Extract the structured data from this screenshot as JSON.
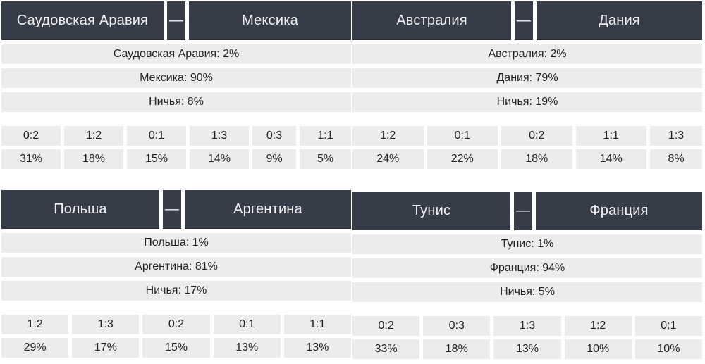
{
  "matches": [
    {
      "team1": "Саудовская Аравия",
      "dash": "—",
      "team2": "Мексика",
      "prob": [
        "Саудовская Аравия: 2%",
        "Мексика: 90%",
        "Ничья: 8%"
      ],
      "scores": [
        {
          "score": "0:2",
          "pct": "31%"
        },
        {
          "score": "1:2",
          "pct": "18%"
        },
        {
          "score": "0:1",
          "pct": "15%"
        },
        {
          "score": "1:3",
          "pct": "14%"
        },
        {
          "score": "0:3",
          "pct": "9%"
        },
        {
          "score": "1:1",
          "pct": "5%"
        }
      ]
    },
    {
      "team1": "Австралия",
      "dash": "—",
      "team2": "Дания",
      "prob": [
        "Австралия: 2%",
        "Дания: 79%",
        "Ничья: 19%"
      ],
      "scores": [
        {
          "score": "1:2",
          "pct": "24%"
        },
        {
          "score": "0:1",
          "pct": "22%"
        },
        {
          "score": "0:2",
          "pct": "18%"
        },
        {
          "score": "1:1",
          "pct": "14%"
        },
        {
          "score": "1:3",
          "pct": "8%"
        }
      ]
    },
    {
      "team1": "Польша",
      "dash": "—",
      "team2": "Аргентина",
      "prob": [
        "Польша: 1%",
        "Аргентина: 81%",
        "Ничья: 17%"
      ],
      "scores": [
        {
          "score": "1:2",
          "pct": "29%"
        },
        {
          "score": "1:3",
          "pct": "17%"
        },
        {
          "score": "0:2",
          "pct": "15%"
        },
        {
          "score": "0:1",
          "pct": "13%"
        },
        {
          "score": "1:1",
          "pct": "13%"
        }
      ]
    },
    {
      "team1": "Тунис",
      "dash": "—",
      "team2": "Франция",
      "prob": [
        "Тунис: 1%",
        "Франция: 94%",
        "Ничья: 5%"
      ],
      "scores": [
        {
          "score": "0:2",
          "pct": "33%"
        },
        {
          "score": "0:3",
          "pct": "18%"
        },
        {
          "score": "1:3",
          "pct": "13%"
        },
        {
          "score": "1:2",
          "pct": "10%"
        },
        {
          "score": "0:1",
          "pct": "10%"
        }
      ]
    }
  ]
}
